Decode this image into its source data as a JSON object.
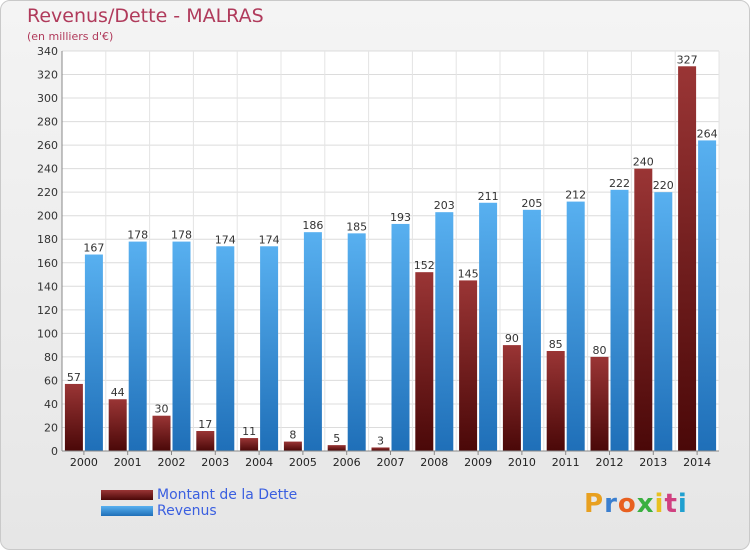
{
  "header": {
    "title": "Revenus/Dette - MALRAS",
    "subtitle": "(en milliers d'€)"
  },
  "chart_data": {
    "type": "bar",
    "title": "Revenus/Dette - MALRAS",
    "subtitle": "(en milliers d'€)",
    "xlabel": "",
    "ylabel": "",
    "ylim": [
      0,
      340
    ],
    "ytick_step": 20,
    "grid": true,
    "legend_position": "bottom-left",
    "categories": [
      "2000",
      "2001",
      "2002",
      "2003",
      "2004",
      "2005",
      "2006",
      "2007",
      "2008",
      "2009",
      "2010",
      "2011",
      "2012",
      "2013",
      "2014"
    ],
    "series": [
      {
        "name": "Montant de la Dette",
        "color": "#7b1a1a",
        "values": [
          57,
          44,
          30,
          17,
          11,
          8,
          5,
          3,
          152,
          145,
          90,
          85,
          80,
          240,
          327
        ]
      },
      {
        "name": "Revenus",
        "color": "#3a9ae6",
        "values": [
          167,
          178,
          178,
          174,
          174,
          186,
          185,
          193,
          203,
          211,
          205,
          212,
          222,
          220,
          264
        ]
      }
    ]
  },
  "legend": {
    "items": [
      {
        "label": "Montant de la Dette",
        "color": "#7b1a1a"
      },
      {
        "label": "Revenus",
        "color": "#3a9ae6"
      }
    ]
  },
  "logo": {
    "text": "Proxiti",
    "letter_colors": [
      "#e8a020",
      "#3a7fd0",
      "#e86020",
      "#3ab040",
      "#e8c020",
      "#d04080",
      "#20a0d0"
    ]
  }
}
